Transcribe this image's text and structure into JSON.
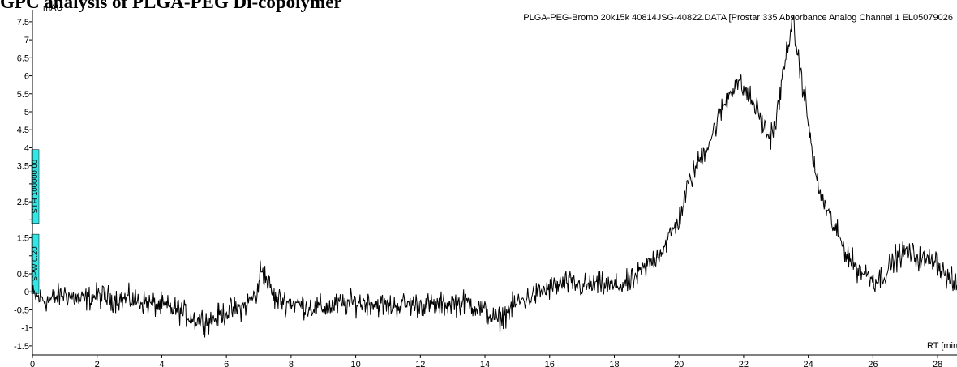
{
  "page_heading": "GPC analysis of PLGA-PEG Di-copolymer",
  "chart_data": {
    "type": "line",
    "title": "PLGA-PEG-Bromo 20k15k 40814JSG-40822.DATA [Prostar 335 Absorbance Analog Channel 1 EL05079026",
    "ylabel": "mAU",
    "xlabel": "RT [min]",
    "xlim": [
      0,
      28.6
    ],
    "ylim": [
      -1.75,
      7.7
    ],
    "x_ticks": [
      0,
      2,
      4,
      6,
      8,
      10,
      12,
      14,
      16,
      18,
      20,
      22,
      24,
      26,
      28
    ],
    "y_ticks": [
      -1.5,
      -1,
      -0.5,
      0,
      0.5,
      1,
      1.5,
      2,
      2.5,
      3,
      3.5,
      4,
      4.5,
      5,
      5.5,
      6,
      6.5,
      7,
      7.5
    ],
    "y_tick_labels": [
      "-1.5",
      "-1",
      "-0.5",
      "0",
      "0.5",
      "",
      "1.5",
      "",
      "2.5",
      "",
      "3.5",
      "4",
      "4.5",
      "5",
      "5.5",
      "6",
      "6.5",
      "7",
      "7.5"
    ],
    "grid": false,
    "line_color": "#000000",
    "series": [
      {
        "x": [
          0,
          0.5,
          1,
          1.5,
          2,
          2.5,
          3,
          3.5,
          4,
          4.5,
          5,
          5.5,
          6,
          6.5,
          7,
          7.05,
          7.5,
          8,
          8.5,
          9,
          9.5,
          10,
          10.5,
          11,
          11.5,
          12,
          12.5,
          13,
          13.5,
          14,
          14.4,
          15,
          15.5,
          16,
          16.5,
          17,
          17.5,
          18,
          18.5,
          19,
          19.5,
          20,
          20.3,
          20.6,
          21,
          21.3,
          21.6,
          21.8,
          22.1,
          22.4,
          22.6,
          22.8,
          23.0,
          23.2,
          23.4,
          23.55,
          23.7,
          23.9,
          24.1,
          24.3,
          24.6,
          24.9,
          25.2,
          25.5,
          25.8,
          26.1,
          26.4,
          26.7,
          27,
          27.3,
          27.6,
          27.9,
          28.2,
          28.6
        ],
        "values": [
          -0.1,
          -0.25,
          -0.05,
          -0.25,
          -0.1,
          -0.2,
          -0.2,
          -0.3,
          -0.4,
          -0.5,
          -0.75,
          -0.8,
          -0.55,
          -0.45,
          0.0,
          0.75,
          -0.2,
          -0.3,
          -0.4,
          -0.45,
          -0.35,
          -0.3,
          -0.3,
          -0.4,
          -0.35,
          -0.35,
          -0.4,
          -0.3,
          -0.3,
          -0.55,
          -0.8,
          -0.3,
          -0.1,
          0.1,
          0.25,
          0.15,
          0.2,
          0.15,
          0.25,
          0.7,
          1.2,
          2.0,
          3.0,
          3.6,
          4.3,
          5.0,
          5.6,
          5.85,
          5.5,
          5.1,
          4.6,
          4.3,
          4.7,
          5.9,
          7.1,
          7.4,
          6.4,
          5.4,
          4.0,
          2.9,
          2.2,
          1.6,
          1.05,
          0.65,
          0.5,
          0.3,
          0.55,
          0.95,
          1.1,
          1.0,
          0.85,
          0.95,
          0.5,
          0.15
        ]
      }
    ],
    "y_markers": [
      {
        "label": "STH 100000.00",
        "y_from": 1.9,
        "y_to": 3.95,
        "color": "#33e6e6"
      },
      {
        "label": "SPW 0.20",
        "y_from": -0.05,
        "y_to": 1.6,
        "color": "#33e6e6"
      }
    ]
  }
}
